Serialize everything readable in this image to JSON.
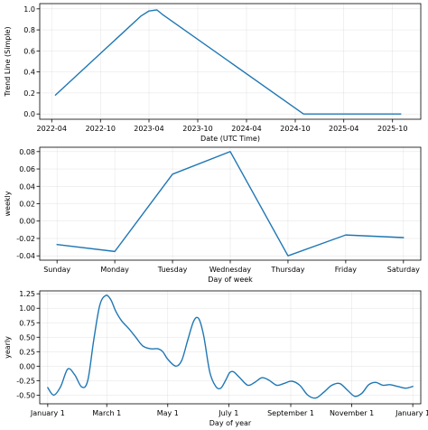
{
  "chart_data": [
    {
      "type": "line",
      "xlabel": "Date (UTC Time)",
      "ylabel": "Trend Line (Simple)",
      "x_type": "date",
      "xlim": [
        "2022-02-15",
        "2026-01-15"
      ],
      "ylim": [
        -0.05,
        1.05
      ],
      "x_ticks": [
        {
          "value": "2022-04-01",
          "label": "2022-04"
        },
        {
          "value": "2022-10-01",
          "label": "2022-10"
        },
        {
          "value": "2023-04-01",
          "label": "2023-04"
        },
        {
          "value": "2023-10-01",
          "label": "2023-10"
        },
        {
          "value": "2024-04-01",
          "label": "2024-04"
        },
        {
          "value": "2024-10-01",
          "label": "2024-10"
        },
        {
          "value": "2025-04-01",
          "label": "2025-04"
        },
        {
          "value": "2025-10-01",
          "label": "2025-10"
        }
      ],
      "y_ticks": [
        0.0,
        0.2,
        0.4,
        0.6,
        0.8,
        1.0
      ],
      "y_tick_format": 1,
      "grid": true,
      "series": [
        {
          "color": "#1f77b4",
          "x": [
            "2022-04-15",
            "2023-03-01",
            "2023-04-01",
            "2023-05-01",
            "2023-05-20",
            "2024-11-01",
            "2025-11-01"
          ],
          "y": [
            0.18,
            0.93,
            0.98,
            0.99,
            0.95,
            0.0,
            0.0
          ]
        }
      ]
    },
    {
      "type": "line",
      "xlabel": "Day of week",
      "ylabel": "weekly",
      "categories": [
        "Sunday",
        "Monday",
        "Tuesday",
        "Wednesday",
        "Thursday",
        "Friday",
        "Saturday"
      ],
      "ylim": [
        -0.045,
        0.085
      ],
      "y_ticks": [
        -0.04,
        -0.02,
        0.0,
        0.02,
        0.04,
        0.06,
        0.08
      ],
      "y_tick_format": 2,
      "grid": true,
      "series": [
        {
          "color": "#1f77b4",
          "values": [
            -0.027,
            -0.035,
            0.054,
            0.08,
            -0.04,
            -0.016,
            -0.019
          ]
        }
      ]
    },
    {
      "type": "line",
      "xlabel": "Day of year",
      "ylabel": "yearly",
      "x_type": "day-of-year",
      "xlim": [
        -8,
        373
      ],
      "ylim": [
        -0.65,
        1.3
      ],
      "x_ticks": [
        {
          "value": 0,
          "label": "January 1"
        },
        {
          "value": 59,
          "label": "March 1"
        },
        {
          "value": 120,
          "label": "May 1"
        },
        {
          "value": 181,
          "label": "July 1"
        },
        {
          "value": 243,
          "label": "September 1"
        },
        {
          "value": 304,
          "label": "November 1"
        },
        {
          "value": 365,
          "label": "January 1"
        }
      ],
      "y_ticks": [
        -0.5,
        -0.25,
        0.0,
        0.25,
        0.5,
        0.75,
        1.0,
        1.25
      ],
      "y_tick_format": 2,
      "grid": true,
      "series": [
        {
          "color": "#1f77b4",
          "x": [
            0,
            6,
            13,
            20,
            27,
            34,
            40,
            46,
            52,
            58,
            63,
            68,
            74,
            81,
            88,
            95,
            103,
            110,
            115,
            120,
            128,
            134,
            140,
            146,
            151,
            156,
            162,
            168,
            173,
            178,
            182,
            186,
            192,
            200,
            207,
            214,
            221,
            229,
            236,
            244,
            252,
            260,
            268,
            276,
            284,
            292,
            300,
            307,
            314,
            321,
            328,
            335,
            342,
            350,
            358,
            365
          ],
          "y": [
            -0.37,
            -0.5,
            -0.35,
            -0.05,
            -0.15,
            -0.36,
            -0.25,
            0.45,
            1.05,
            1.22,
            1.15,
            0.95,
            0.78,
            0.65,
            0.5,
            0.35,
            0.3,
            0.3,
            0.25,
            0.12,
            0.0,
            0.1,
            0.45,
            0.78,
            0.82,
            0.52,
            -0.1,
            -0.35,
            -0.38,
            -0.24,
            -0.11,
            -0.1,
            -0.2,
            -0.33,
            -0.28,
            -0.2,
            -0.24,
            -0.33,
            -0.3,
            -0.26,
            -0.33,
            -0.5,
            -0.55,
            -0.45,
            -0.33,
            -0.3,
            -0.42,
            -0.52,
            -0.47,
            -0.32,
            -0.28,
            -0.33,
            -0.32,
            -0.35,
            -0.38,
            -0.35
          ]
        }
      ]
    }
  ]
}
